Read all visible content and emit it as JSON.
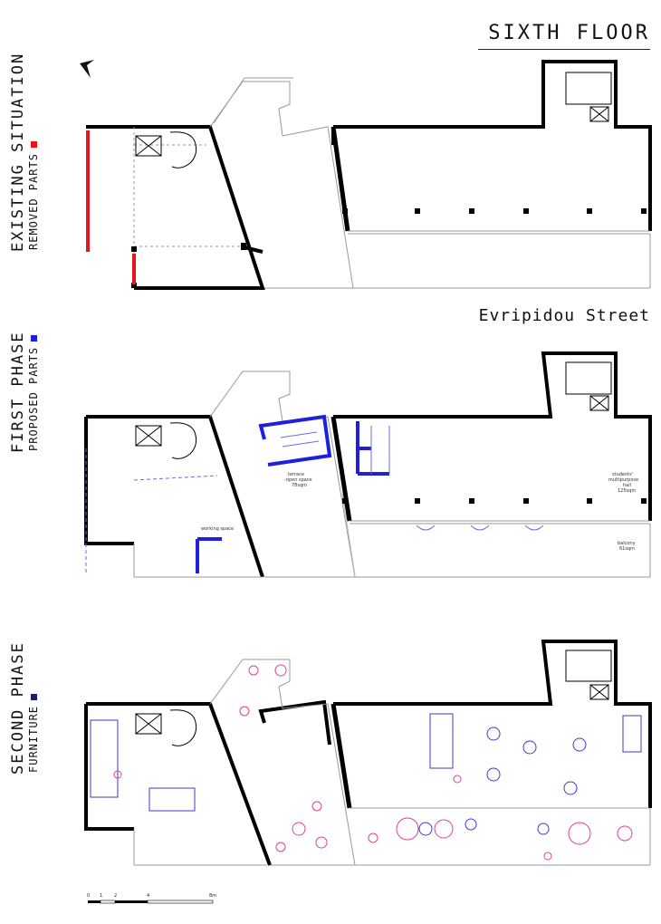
{
  "title": "SIXTH FLOOR",
  "street": "Evripidou Street",
  "sections": [
    {
      "heading": "EXISTING SITUATION",
      "legend": "REMOVED PARTS",
      "legend_color": "#e8141b"
    },
    {
      "heading": "FIRST PHASE",
      "legend": "PROPOSED PARTS",
      "legend_color": "#1f1fe0"
    },
    {
      "heading": "SECOND PHASE",
      "legend": "FURNITURE",
      "legend_color": "#1d1d6e"
    }
  ],
  "rooms": {
    "terrace": [
      "terrace",
      "-open space",
      "78sqm"
    ],
    "hall": [
      "students'",
      "multipurpose",
      "hall",
      "125sqm"
    ],
    "working": "working space",
    "balcony": [
      "balcony",
      "61sqm"
    ]
  },
  "scale": {
    "ticks": [
      "0",
      "1",
      "2",
      "4",
      "8m"
    ]
  },
  "colors": {
    "wall": "#000000",
    "removed": "#e8141b",
    "proposed": "#1f1fe0",
    "furniture_pink": "#e0409a",
    "furniture_blue": "#3a3ad0"
  }
}
